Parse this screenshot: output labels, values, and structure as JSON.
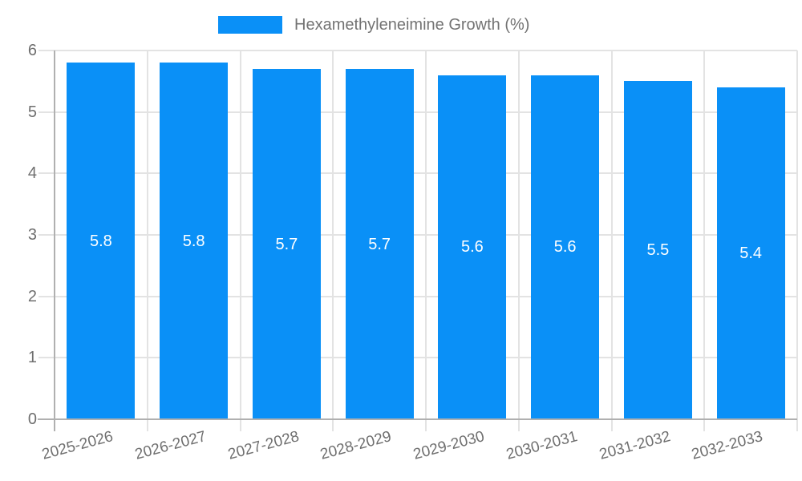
{
  "chart_data": {
    "type": "bar",
    "title": "",
    "series_name": "Hexamethyleneimine Growth (%)",
    "categories": [
      "2025-2026",
      "2026-2027",
      "2027-2028",
      "2028-2029",
      "2029-2030",
      "2030-2031",
      "2031-2032",
      "2032-2033"
    ],
    "values": [
      5.8,
      5.8,
      5.7,
      5.7,
      5.6,
      5.6,
      5.5,
      5.4
    ],
    "value_labels": [
      "5.8",
      "5.8",
      "5.7",
      "5.7",
      "5.6",
      "5.6",
      "5.5",
      "5.4"
    ],
    "ylim": [
      0,
      6
    ],
    "yticks": [
      0,
      1,
      2,
      3,
      4,
      5,
      6
    ],
    "grid": true,
    "legend_position": "top",
    "x_label_rotation_deg": -15,
    "colors": {
      "bar": "#0a90f7",
      "value_label": "#ffffff",
      "axis": "#b0b0b0",
      "gridline": "#e3e3e3",
      "tick_label": "#6f6f6f",
      "legend_text": "#737373"
    }
  }
}
